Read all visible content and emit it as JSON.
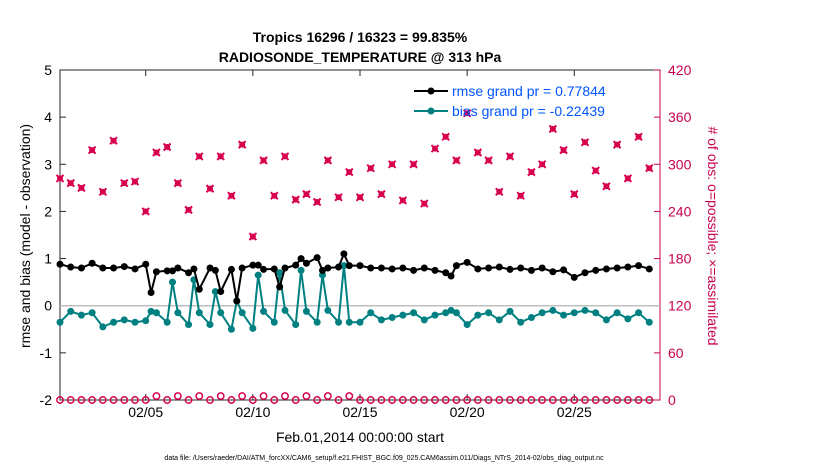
{
  "chart_data": {
    "type": "line",
    "title_line1": "Tropics 16296 / 16323 = 99.835%",
    "title_line2": "RADIOSONDE_TEMPERATURE @ 313 hPa",
    "xlabel": "Feb.01,2014 00:00:00 start",
    "ylabel_left": "rmse and bias (model - observation)",
    "ylabel_right": "# of obs: o=possible; ×=assimilated",
    "footer": "data file: /Users/raeder/DAI/ATM_forcXX/CAM6_setup/f.e21.FHIST_BGC.f09_025.CAM6assim.011/Diags_NTrS_2014-02/obs_diag_output.nc",
    "x_range": [
      1.0,
      29.0
    ],
    "ylim_left": [
      -2,
      5
    ],
    "ylim_right": [
      0,
      420
    ],
    "left_ticks": [
      5,
      4,
      3,
      2,
      1,
      0,
      -1,
      -2
    ],
    "left_tick_labels": [
      "5",
      "4",
      "3",
      "2",
      "1",
      "0",
      "-1",
      "-2"
    ],
    "right_ticks": [
      420,
      360,
      300,
      240,
      180,
      120,
      60,
      0
    ],
    "right_tick_labels": [
      "420",
      "360",
      "300",
      "240",
      "180",
      "120",
      "60",
      "0"
    ],
    "x_ticks": [
      5,
      10,
      15,
      20,
      25
    ],
    "x_tick_labels": [
      "02/05",
      "02/10",
      "02/15",
      "02/20",
      "02/25"
    ],
    "colors": {
      "rmse": "#000000",
      "bias": "#008080",
      "obs": "#d6004f",
      "legend_text": "#0055ff",
      "zero_line": "#bfbfbf",
      "right_axis": "#c8004f"
    },
    "legend": {
      "rmse_label": "rmse grand pr = 0.77844",
      "bias_label": "bias grand pr = -0.22439",
      "placement": "top-right"
    },
    "rmse": {
      "x": [
        1.0,
        1.5,
        2.0,
        2.5,
        3.0,
        3.5,
        4.0,
        4.5,
        5.0,
        5.25,
        5.5,
        6.0,
        6.25,
        6.5,
        7.0,
        7.25,
        7.5,
        8.0,
        8.25,
        8.5,
        9.0,
        9.25,
        9.5,
        10.0,
        10.25,
        10.5,
        11.0,
        11.25,
        11.5,
        12.0,
        12.25,
        12.5,
        13.0,
        13.25,
        13.5,
        14.0,
        14.25,
        14.5,
        15.0,
        15.5,
        16.0,
        16.5,
        17.0,
        17.5,
        18.0,
        18.5,
        19.0,
        19.25,
        19.5,
        20.0,
        20.5,
        21.0,
        21.5,
        22.0,
        22.5,
        23.0,
        23.5,
        24.0,
        24.5,
        25.0,
        25.5,
        26.0,
        26.5,
        27.0,
        27.5,
        28.0,
        28.5
      ],
      "y": [
        0.88,
        0.82,
        0.8,
        0.9,
        0.8,
        0.8,
        0.83,
        0.78,
        0.88,
        0.28,
        0.72,
        0.74,
        0.74,
        0.8,
        0.7,
        0.78,
        0.35,
        0.8,
        0.75,
        0.3,
        0.77,
        0.1,
        0.8,
        0.86,
        0.86,
        0.77,
        0.78,
        0.4,
        0.8,
        0.86,
        1.0,
        0.9,
        1.02,
        0.75,
        0.8,
        0.82,
        1.1,
        0.85,
        0.85,
        0.8,
        0.8,
        0.78,
        0.8,
        0.75,
        0.8,
        0.75,
        0.7,
        0.63,
        0.85,
        0.92,
        0.78,
        0.8,
        0.82,
        0.77,
        0.8,
        0.75,
        0.8,
        0.72,
        0.76,
        0.6,
        0.7,
        0.75,
        0.78,
        0.8,
        0.82,
        0.85,
        0.78
      ]
    },
    "bias": {
      "x": [
        1.0,
        1.5,
        2.0,
        2.5,
        3.0,
        3.5,
        4.0,
        4.5,
        5.0,
        5.25,
        5.5,
        6.0,
        6.25,
        6.5,
        7.0,
        7.25,
        7.5,
        8.0,
        8.25,
        8.5,
        9.0,
        9.25,
        9.5,
        10.0,
        10.25,
        10.5,
        11.0,
        11.25,
        11.5,
        12.0,
        12.25,
        12.5,
        13.0,
        13.25,
        13.5,
        14.0,
        14.25,
        14.5,
        15.0,
        15.5,
        16.0,
        16.5,
        17.0,
        17.5,
        18.0,
        18.5,
        19.0,
        19.25,
        19.5,
        20.0,
        20.5,
        21.0,
        21.5,
        22.0,
        22.5,
        23.0,
        23.5,
        24.0,
        24.5,
        25.0,
        25.5,
        26.0,
        26.5,
        27.0,
        27.5,
        28.0,
        28.5
      ],
      "y": [
        -0.35,
        -0.12,
        -0.2,
        -0.15,
        -0.45,
        -0.35,
        -0.3,
        -0.35,
        -0.32,
        -0.12,
        -0.15,
        -0.35,
        0.5,
        -0.15,
        -0.4,
        0.55,
        -0.15,
        -0.4,
        0.3,
        -0.15,
        -0.5,
        0.1,
        -0.15,
        -0.48,
        0.65,
        -0.12,
        -0.35,
        0.7,
        -0.1,
        -0.4,
        0.75,
        -0.12,
        -0.35,
        0.65,
        -0.1,
        -0.35,
        0.85,
        -0.35,
        -0.35,
        -0.15,
        -0.3,
        -0.25,
        -0.2,
        -0.15,
        -0.3,
        -0.2,
        -0.15,
        -0.1,
        -0.15,
        -0.4,
        -0.2,
        -0.15,
        -0.3,
        -0.12,
        -0.35,
        -0.25,
        -0.15,
        -0.1,
        -0.2,
        -0.15,
        -0.1,
        -0.15,
        -0.3,
        -0.15,
        -0.28,
        -0.15,
        -0.35
      ]
    },
    "obs_assimilated": {
      "x": [
        1.0,
        1.5,
        2.0,
        2.5,
        3.0,
        3.5,
        4.0,
        4.5,
        5.0,
        5.5,
        6.0,
        6.5,
        7.0,
        7.5,
        8.0,
        8.5,
        9.0,
        9.5,
        10.0,
        10.5,
        11.0,
        11.5,
        12.0,
        12.5,
        13.0,
        13.5,
        14.0,
        14.5,
        15.0,
        15.5,
        16.0,
        16.5,
        17.0,
        17.5,
        18.0,
        18.5,
        19.0,
        19.5,
        20.0,
        20.5,
        21.0,
        21.5,
        22.0,
        22.5,
        23.0,
        23.5,
        24.0,
        24.5,
        25.0,
        25.5,
        26.0,
        26.5,
        27.0,
        27.5,
        28.0,
        28.5
      ],
      "y": [
        282,
        276,
        270,
        318,
        265,
        330,
        276,
        278,
        240,
        315,
        322,
        276,
        242,
        310,
        269,
        310,
        260,
        325,
        208,
        305,
        260,
        310,
        255,
        262,
        252,
        305,
        258,
        290,
        258,
        295,
        262,
        300,
        254,
        300,
        250,
        320,
        335,
        305,
        365,
        315,
        305,
        265,
        310,
        260,
        290,
        300,
        345,
        318,
        262,
        328,
        292,
        272,
        325,
        282,
        335,
        295
      ]
    },
    "obs_possible": {
      "x": [
        1.0,
        1.5,
        2.0,
        2.5,
        3.0,
        3.5,
        4.0,
        4.5,
        5.0,
        5.5,
        6.0,
        6.5,
        7.0,
        7.5,
        8.0,
        8.5,
        9.0,
        9.5,
        10.0,
        10.5,
        11.0,
        11.5,
        12.0,
        12.5,
        13.0,
        13.5,
        14.0,
        14.5,
        15.0,
        15.5,
        16.0,
        16.5,
        17.0,
        17.5,
        18.0,
        18.5,
        19.0,
        19.5,
        20.0,
        20.5,
        21.0,
        21.5,
        22.0,
        22.5,
        23.0,
        23.5,
        24.0,
        24.5,
        25.0,
        25.5,
        26.0,
        26.5,
        27.0,
        27.5,
        28.0,
        28.5
      ],
      "y": [
        0,
        0,
        0,
        0,
        0,
        0,
        0,
        0,
        0,
        5,
        0,
        5,
        0,
        5,
        0,
        5,
        0,
        5,
        0,
        5,
        0,
        5,
        0,
        5,
        0,
        5,
        0,
        5,
        0,
        0,
        0,
        0,
        0,
        0,
        0,
        0,
        0,
        0,
        0,
        0,
        0,
        0,
        0,
        0,
        0,
        0,
        0,
        0,
        0,
        0,
        0,
        0,
        0,
        0,
        0,
        0
      ]
    }
  }
}
